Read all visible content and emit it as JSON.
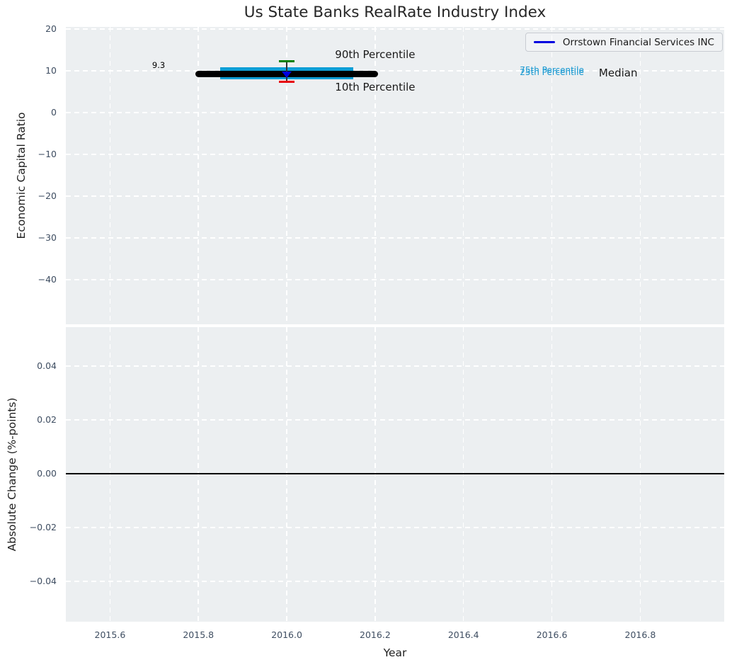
{
  "figure": {
    "title": "Us State Banks RealRate Industry Index",
    "legend": {
      "label": "Orrstown Financial Services INC",
      "line_color": "#0000e0"
    }
  },
  "colors": {
    "plot_background": "#eceff1",
    "gridline": "#ffffff",
    "tick_text": "#3e4d61",
    "median_black": "#000000",
    "percentile_band_cyan": "#0d9ed6",
    "whisker_cap_green": "#008000",
    "whisker_cap_red": "#e8000b",
    "company_blue": "#0000e0"
  },
  "chart_data": [
    {
      "type": "line",
      "subplot": "top",
      "title": "Us State Banks RealRate Industry Index",
      "ylabel": "Economic Capital Ratio",
      "grid": true,
      "legend_position": "upper right",
      "xlim": [
        2015.5,
        2016.99
      ],
      "ylim": [
        -50.7,
        20.5
      ],
      "x_ticks": [
        2015.6,
        2015.8,
        2016.0,
        2016.2,
        2016.4,
        2016.6,
        2016.8
      ],
      "x_tick_labels": [],
      "y_ticks": [
        20,
        10,
        0,
        -10,
        -20,
        -30,
        -40
      ],
      "y_tick_labels": [
        "20",
        "10",
        "0",
        "−10",
        "−20",
        "−30",
        "−40"
      ],
      "series": [
        {
          "name": "Median",
          "type": "segment",
          "x_start": 2015.8,
          "x_end": 2016.2,
          "y": 9.3,
          "color": "#000000",
          "linewidth": 9
        },
        {
          "name": "25th-75th Percentile Band",
          "type": "bar",
          "x_start": 2015.85,
          "x_end": 2016.15,
          "y_bottom": 8.0,
          "y_top": 10.9,
          "color": "#0d9ed6"
        },
        {
          "name": "10th-90th Percentile Whisker",
          "type": "whisker",
          "x": 2016.0,
          "y_low": 7.4,
          "y_high": 12.3,
          "line_color": "#333333",
          "cap_top_color": "#008000",
          "cap_bottom_color": "#e8000b"
        },
        {
          "name": "Orrstown Financial Services INC",
          "type": "marker",
          "marker": "triangle-down",
          "x": 2016.0,
          "y": 9.0,
          "color": "#0000e0"
        }
      ],
      "annotations": [
        {
          "text": "9.3",
          "x": 2015.71,
          "y": 11.3,
          "color": "#000000",
          "kind": "tiny"
        },
        {
          "text": "90th Percentile",
          "x": 2016.2,
          "y": 13.9,
          "color": "#1a1a1a",
          "kind": "large"
        },
        {
          "text": "10th Percentile",
          "x": 2016.2,
          "y": 6.1,
          "color": "#1a1a1a",
          "kind": "large"
        },
        {
          "text": "75th Percentile",
          "x": 2016.6,
          "y": 10.1,
          "color": "#1b9ad2",
          "kind": "small"
        },
        {
          "text": "25th Percentile",
          "x": 2016.6,
          "y": 9.7,
          "color": "#1b9ad2",
          "kind": "small"
        },
        {
          "text": "Median",
          "x": 2016.75,
          "y": 9.55,
          "color": "#1a1a1a",
          "kind": "large"
        }
      ]
    },
    {
      "type": "line",
      "subplot": "bottom",
      "ylabel": "Absolute Change (%-points)",
      "xlabel": "Year",
      "grid": true,
      "xlim": [
        2015.5,
        2016.99
      ],
      "ylim": [
        -0.055,
        0.0545
      ],
      "x_ticks": [
        2015.6,
        2015.8,
        2016.0,
        2016.2,
        2016.4,
        2016.6,
        2016.8
      ],
      "x_tick_labels": [
        "2015.6",
        "2015.8",
        "2016.0",
        "2016.2",
        "2016.4",
        "2016.6",
        "2016.8"
      ],
      "y_ticks": [
        0.04,
        0.02,
        0.0,
        -0.02,
        -0.04
      ],
      "y_tick_labels": [
        "0.04",
        "0.02",
        "0.00",
        "−0.02",
        "−0.04"
      ],
      "series": [
        {
          "name": "zero-line",
          "type": "hline",
          "y": 0.0,
          "color": "#000000",
          "linewidth": 1.5
        }
      ],
      "annotations": []
    }
  ]
}
